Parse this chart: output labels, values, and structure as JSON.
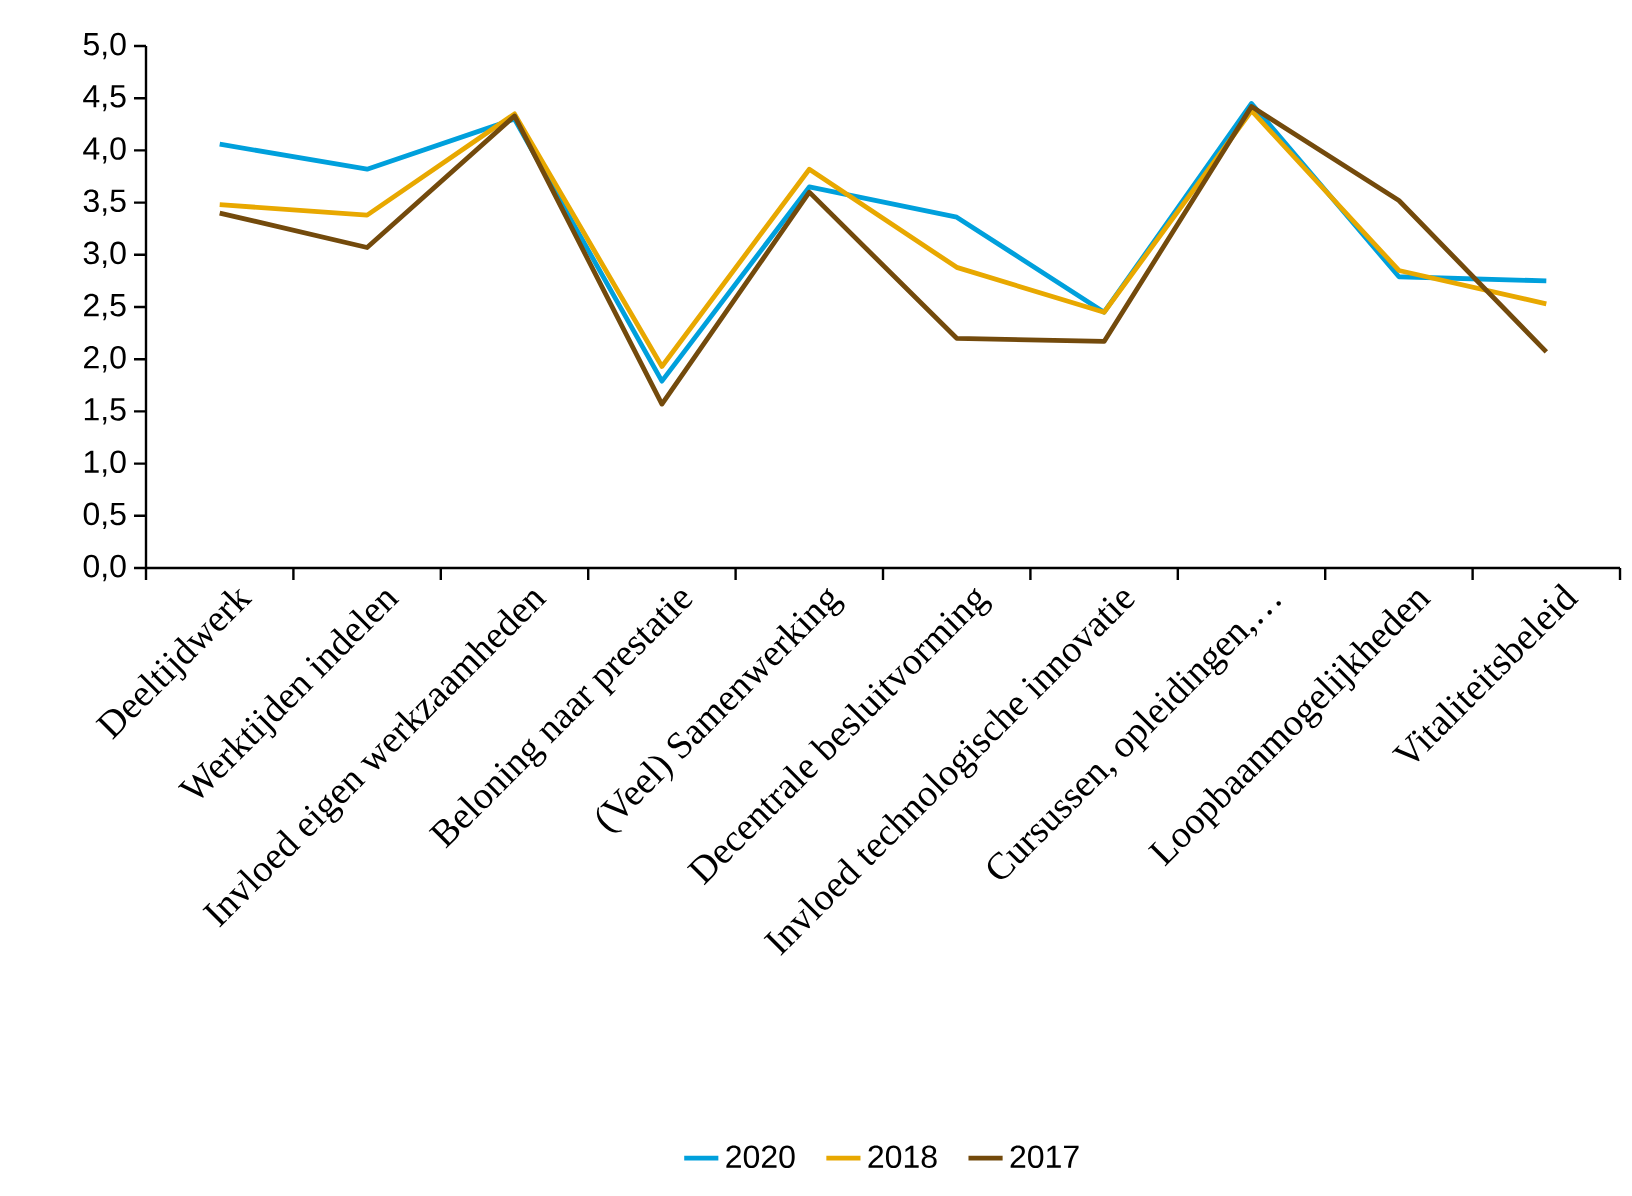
{
  "chart_data": {
    "type": "line",
    "categories": [
      "Deeltijdwerk",
      "Werktijden indelen",
      "Invloed eigen werkzaamheden",
      "Beloning naar prestatie",
      "(Veel) Samenwerking",
      "Decentrale besluitvorming",
      "Invloed technologische innovatie",
      "Cursussen, opleidingen,…",
      "Loopbaanmogelijkheden",
      "Vitaliteitsbeleid"
    ],
    "series": [
      {
        "name": "2020",
        "color": "#00a0dc",
        "values": [
          4.06,
          3.82,
          4.3,
          1.79,
          3.65,
          3.36,
          2.45,
          4.45,
          2.79,
          2.75
        ]
      },
      {
        "name": "2018",
        "color": "#e8a800",
        "values": [
          3.48,
          3.38,
          4.35,
          1.93,
          3.82,
          2.88,
          2.45,
          4.38,
          2.85,
          2.53
        ]
      },
      {
        "name": "2017",
        "color": "#734a0c",
        "values": [
          3.4,
          3.07,
          4.33,
          1.57,
          3.6,
          2.2,
          2.17,
          4.42,
          3.52,
          2.07
        ]
      }
    ],
    "ylim": [
      0,
      5
    ],
    "yticks": [
      {
        "value": 0,
        "label": "0,0"
      },
      {
        "value": 0.5,
        "label": "0,5"
      },
      {
        "value": 1,
        "label": "1,0"
      },
      {
        "value": 1.5,
        "label": "1,5"
      },
      {
        "value": 2,
        "label": "2,0"
      },
      {
        "value": 2.5,
        "label": "2,5"
      },
      {
        "value": 3,
        "label": "3,0"
      },
      {
        "value": 3.5,
        "label": "3,5"
      },
      {
        "value": 4,
        "label": "4,0"
      },
      {
        "value": 4.5,
        "label": "4,5"
      },
      {
        "value": 5,
        "label": "5,0"
      }
    ],
    "grid": false,
    "legend": "bottom",
    "marker": "none",
    "line_style": "solid"
  }
}
